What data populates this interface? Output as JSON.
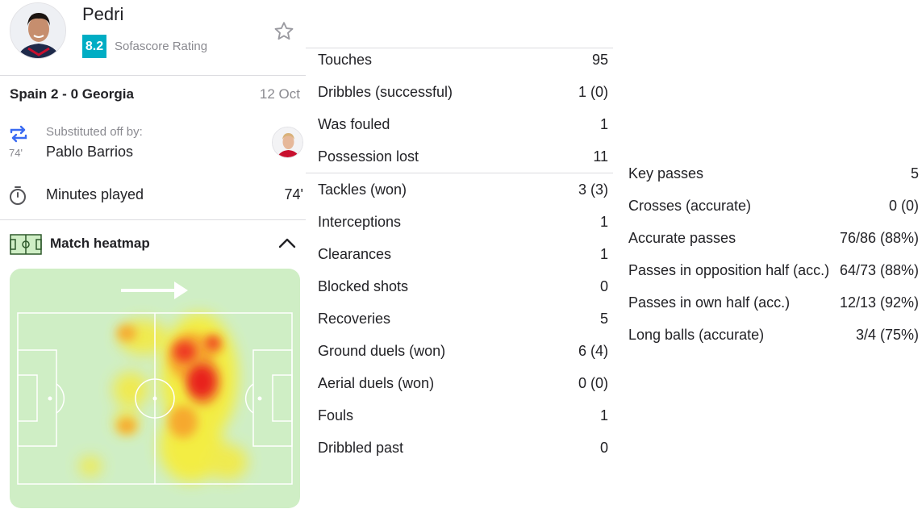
{
  "player": {
    "name": "Pedri",
    "rating": "8.2",
    "rating_label": "Sofascore Rating"
  },
  "match": {
    "title": "Spain 2 - 0 Georgia",
    "date": "12 Oct"
  },
  "substitution": {
    "minute": "74'",
    "label": "Substituted off by:",
    "player": "Pablo Barrios"
  },
  "minutes_played": {
    "label": "Minutes played",
    "value": "74'"
  },
  "heatmap": {
    "title": "Match heatmap"
  },
  "stats_group_1": [
    {
      "label": "Touches",
      "value": "95"
    },
    {
      "label": "Dribbles (successful)",
      "value": "1 (0)"
    },
    {
      "label": "Was fouled",
      "value": "1"
    },
    {
      "label": "Possession lost",
      "value": "11"
    }
  ],
  "stats_group_2": [
    {
      "label": "Tackles (won)",
      "value": "3 (3)"
    },
    {
      "label": "Interceptions",
      "value": "1"
    },
    {
      "label": "Clearances",
      "value": "1"
    },
    {
      "label": "Blocked shots",
      "value": "0"
    },
    {
      "label": "Recoveries",
      "value": "5"
    },
    {
      "label": "Ground duels (won)",
      "value": "6 (4)"
    },
    {
      "label": "Aerial duels (won)",
      "value": "0 (0)"
    },
    {
      "label": "Fouls",
      "value": "1"
    },
    {
      "label": "Dribbled past",
      "value": "0"
    }
  ],
  "stats_group_3": [
    {
      "label": "Key passes",
      "value": "5"
    },
    {
      "label": "Crosses (accurate)",
      "value": "0 (0)"
    },
    {
      "label": "Accurate passes",
      "value": "76/86 (88%)"
    },
    {
      "label": "Passes in opposition half (acc.)",
      "value": "64/73 (88%)"
    },
    {
      "label": "Passes in own half (acc.)",
      "value": "12/13 (92%)"
    },
    {
      "label": "Long balls (accurate)",
      "value": "3/4 (75%)"
    }
  ],
  "icons": {
    "star": "star-outline-icon",
    "substitution": "swap-arrows-icon",
    "timer": "stopwatch-icon",
    "pitch": "pitch-icon",
    "collapse": "chevron-up-icon",
    "direction": "arrow-right-icon"
  },
  "colors": {
    "rating_badge": "#00adc4",
    "sub_icon": "#3a6bf2",
    "pitch": "#cfeec5",
    "text": "#222226",
    "muted": "#8a8a90"
  }
}
